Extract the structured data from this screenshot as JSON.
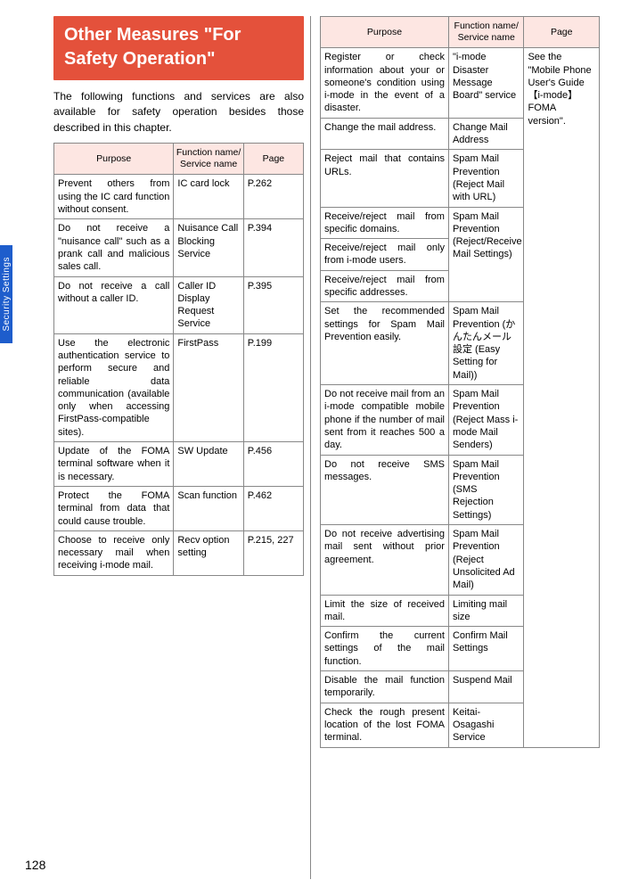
{
  "sidebar_label": "Security Settings",
  "page_number": "128",
  "heading": "Other Measures \"For Safety Operation\"",
  "intro": "The following functions and services are also available for safety operation besides those described in this chapter.",
  "th": {
    "purpose": "Purpose",
    "func": "Function name/\nService name",
    "page": "Page"
  },
  "left_rows": [
    {
      "purpose": "Prevent others from using the IC card function without consent.",
      "func": "IC card lock",
      "page": "P.262"
    },
    {
      "purpose": "Do not receive a \"nuisance call\" such as a prank call and malicious sales call.",
      "func": "Nuisance Call Blocking Service",
      "page": "P.394"
    },
    {
      "purpose": "Do not receive a call without a caller ID.",
      "func": "Caller ID Display Request Service",
      "page": "P.395"
    },
    {
      "purpose": "Use the electronic authentication service to perform secure and reliable data communication (available only when accessing FirstPass-compatible sites).",
      "func": "FirstPass",
      "page": "P.199"
    },
    {
      "purpose": "Update of the FOMA terminal software when it is necessary.",
      "func": "SW Update",
      "page": "P.456"
    },
    {
      "purpose": "Protect the FOMA terminal from data that could cause trouble.",
      "func": "Scan function",
      "page": "P.462"
    },
    {
      "purpose": "Choose to receive only necessary mail when receiving i-mode mail.",
      "func": "Recv option setting",
      "page": "P.215, 227"
    }
  ],
  "right_page_note": "See the \"Mobile Phone User's Guide 【i-mode】 FOMA version\".",
  "right_rows": [
    {
      "purpose": "Register or check information about your or someone's condition using i-mode in the event of a disaster.",
      "func": "\"i-mode Disaster Message Board\" service"
    },
    {
      "purpose": "Change the mail address.",
      "func": "Change Mail Address"
    },
    {
      "purpose": "Reject mail that contains URLs.",
      "func": "Spam Mail Prevention (Reject Mail with URL)"
    },
    {
      "purpose": "Receive/reject mail from specific domains.",
      "func_merged_start": true,
      "func": "Spam Mail Prevention (Reject/Receive Mail Settings)",
      "func_rowspan": 3
    },
    {
      "purpose": "Receive/reject mail only from i-mode users.",
      "func_merged": true
    },
    {
      "purpose": "Receive/reject mail from specific addresses.",
      "func_merged": true
    },
    {
      "purpose": "Set the recommended settings for Spam Mail Prevention easily.",
      "func": "Spam Mail Prevention (かんたんメール設定 (Easy Setting for Mail))"
    },
    {
      "purpose": "Do not receive mail from an i-mode compatible mobile phone if the number of mail sent from it reaches 500 a day.",
      "func": "Spam Mail Prevention (Reject Mass i-mode Mail Senders)"
    },
    {
      "purpose": "Do not receive SMS messages.",
      "func": "Spam Mail Prevention (SMS Rejection Settings)"
    },
    {
      "purpose": "Do not receive advertising mail sent without prior agreement.",
      "func": "Spam Mail Prevention (Reject Unsolicited Ad Mail)"
    },
    {
      "purpose": "Limit the size of received mail.",
      "func": "Limiting mail size"
    },
    {
      "purpose": "Confirm the current settings of the mail function.",
      "func": "Confirm Mail Settings"
    },
    {
      "purpose": "Disable the mail function temporarily.",
      "func": "Suspend Mail"
    },
    {
      "purpose": "Check the rough present location of the lost FOMA terminal.",
      "func": "Keitai-Osagashi Service"
    }
  ]
}
